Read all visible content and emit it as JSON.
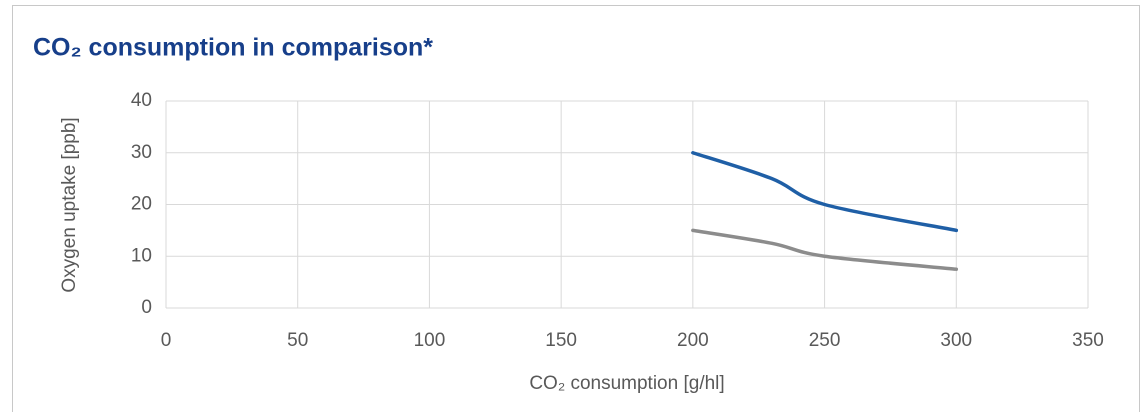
{
  "chart_data": {
    "type": "line",
    "title": "CO₂ consumption in comparison*",
    "xlabel": "CO₂ consumption [g/hl]",
    "ylabel": "Oxygen uptake [ppb]",
    "x": [
      200,
      230,
      250,
      300
    ],
    "series": [
      {
        "color": "#1f5fa6",
        "values": [
          30,
          25,
          20,
          15
        ]
      },
      {
        "color": "#8c8c8c",
        "values": [
          15,
          12.5,
          10,
          7.5
        ]
      }
    ],
    "xlim": [
      0,
      350
    ],
    "xticks": [
      0,
      50,
      100,
      150,
      200,
      250,
      300,
      350
    ],
    "ylim": [
      0,
      40
    ],
    "yticks": [
      0,
      10,
      20,
      30,
      40
    ],
    "grid": true,
    "smooth": true
  }
}
